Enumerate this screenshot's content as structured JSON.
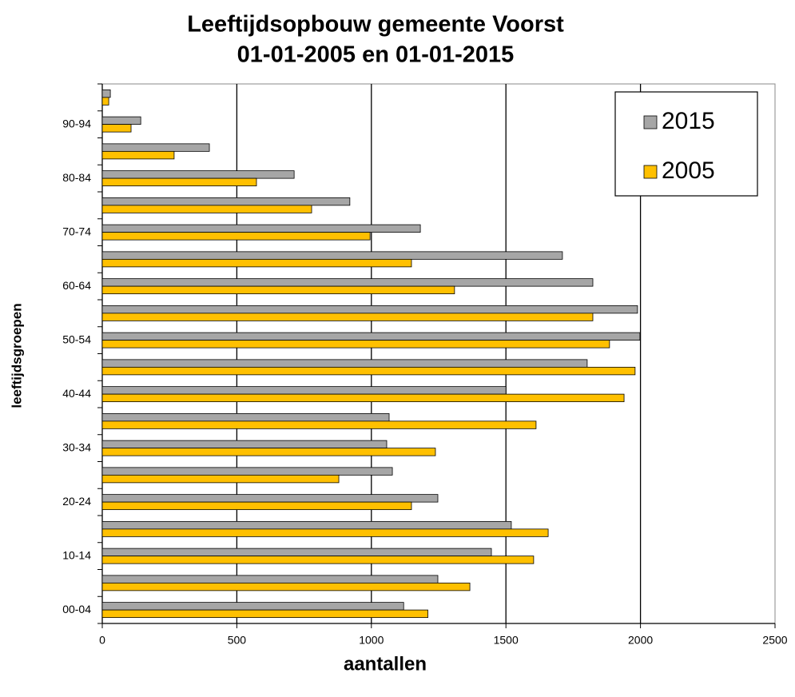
{
  "chart_data": {
    "type": "hbar",
    "title": "Leeftijdsopbouw gemeente Voorst",
    "subtitle": "01-01-2005  en 01-01-2015",
    "x_label": "aantallen",
    "y_label": "leeftijdsgroepen",
    "categories": [
      "00-04",
      null,
      "10-14",
      null,
      "20-24",
      null,
      "30-34",
      null,
      "40-44",
      null,
      "50-54",
      null,
      "60-64",
      null,
      "70-74",
      null,
      "80-84",
      null,
      "90-94",
      null
    ],
    "series": [
      {
        "name": "2015",
        "color": "#a6a6a6",
        "values": [
          1120,
          1247,
          1446,
          1520,
          1247,
          1078,
          1057,
          1066,
          1500,
          1802,
          1998,
          1989,
          1823,
          1710,
          1182,
          920,
          713,
          398,
          143,
          30
        ]
      },
      {
        "name": "2005",
        "color": "#ffc000",
        "values": [
          1210,
          1366,
          1603,
          1657,
          1149,
          879,
          1238,
          1612,
          1939,
          1980,
          1885,
          1823,
          1309,
          1149,
          995,
          778,
          573,
          267,
          107,
          24
        ]
      }
    ],
    "xlim": [
      0,
      2500
    ],
    "xticks": [
      0,
      500,
      1000,
      1500,
      2000,
      2500
    ],
    "grid": true,
    "legend": "top-right"
  }
}
